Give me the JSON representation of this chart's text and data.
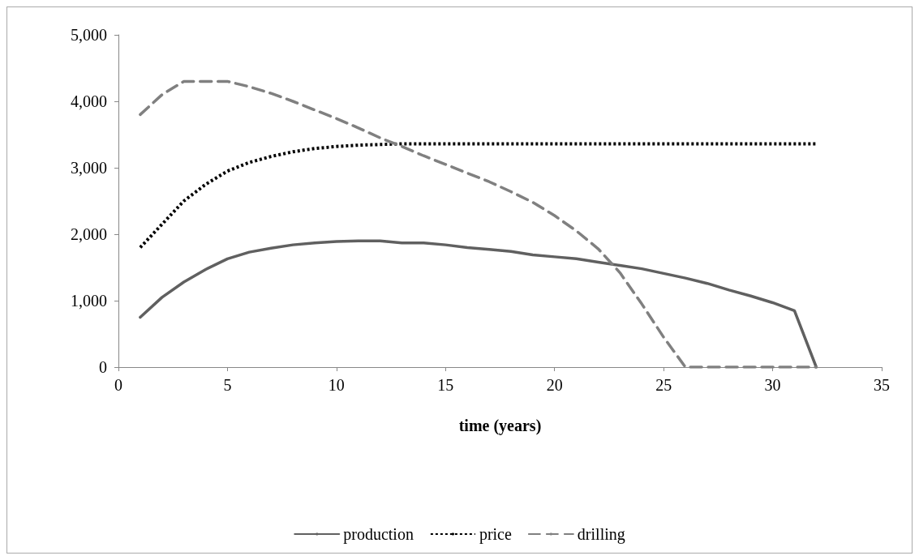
{
  "chart_data": {
    "type": "line",
    "xlabel": "time (years)",
    "x": [
      1,
      2,
      3,
      4,
      5,
      6,
      7,
      8,
      9,
      10,
      11,
      12,
      13,
      14,
      15,
      16,
      17,
      18,
      19,
      20,
      21,
      22,
      23,
      24,
      25,
      26,
      27,
      28,
      29,
      30,
      31,
      32
    ],
    "series": [
      {
        "name": "production",
        "color": "#606060",
        "line_style": "solid",
        "values": [
          750,
          1050,
          1280,
          1470,
          1630,
          1730,
          1790,
          1840,
          1870,
          1890,
          1900,
          1900,
          1870,
          1870,
          1840,
          1800,
          1770,
          1740,
          1690,
          1660,
          1630,
          1580,
          1530,
          1480,
          1410,
          1340,
          1260,
          1160,
          1070,
          970,
          850,
          0
        ]
      },
      {
        "name": "price",
        "color": "#000000",
        "line_style": "dotted",
        "values": [
          1800,
          2150,
          2500,
          2750,
          2950,
          3080,
          3170,
          3240,
          3290,
          3320,
          3340,
          3350,
          3360,
          3360,
          3360,
          3360,
          3360,
          3360,
          3360,
          3360,
          3360,
          3360,
          3360,
          3360,
          3360,
          3360,
          3360,
          3360,
          3360,
          3360,
          3360,
          3360
        ]
      },
      {
        "name": "drilling",
        "color": "#808080",
        "line_style": "dashed",
        "values": [
          3800,
          4100,
          4300,
          4300,
          4300,
          4220,
          4120,
          4000,
          3870,
          3740,
          3600,
          3450,
          3320,
          3180,
          3050,
          2920,
          2790,
          2640,
          2480,
          2280,
          2050,
          1780,
          1420,
          950,
          450,
          0,
          0,
          0,
          0,
          0,
          0,
          0
        ]
      }
    ],
    "xlim": [
      0,
      35
    ],
    "xticks": [
      0,
      5,
      10,
      15,
      20,
      25,
      30,
      35
    ],
    "ylim": [
      0,
      5000
    ],
    "yticks": [
      {
        "value": 0,
        "label": "0"
      },
      {
        "value": 1000,
        "label": "1,000"
      },
      {
        "value": 2000,
        "label": "2,000"
      },
      {
        "value": 3000,
        "label": "3,000"
      },
      {
        "value": 4000,
        "label": "4,000"
      },
      {
        "value": 5000,
        "label": "5,000"
      }
    ],
    "grid": false,
    "legend": "bottom",
    "marker": "none"
  }
}
